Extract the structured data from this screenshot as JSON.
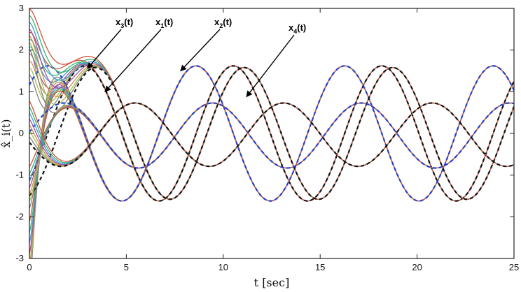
{
  "chart_data": {
    "type": "line",
    "title": "",
    "xlabel": "t [sec]",
    "ylabel": "x̂_i(t)",
    "xlim": [
      0,
      25
    ],
    "ylim": [
      -3,
      3
    ],
    "xticks": [
      0,
      5,
      10,
      15,
      20,
      25
    ],
    "yticks": [
      -3,
      -2,
      -1,
      0,
      1,
      2,
      3
    ],
    "grid": false,
    "legend": "none",
    "annotations": [
      {
        "base": "x",
        "sub": "3",
        "suffix": "(t)",
        "points_to": [
          3.0,
          1.56
        ]
      },
      {
        "base": "x",
        "sub": "1",
        "suffix": "(t)",
        "points_to": [
          3.9,
          1.0
        ]
      },
      {
        "base": "x",
        "sub": "2",
        "suffix": "(t)",
        "points_to": [
          7.8,
          1.5
        ]
      },
      {
        "base": "x",
        "sub": "4",
        "suffix": "(t)",
        "points_to": [
          11.2,
          0.88
        ]
      }
    ],
    "reference_style": "dashed, black/blue",
    "series": [
      {
        "ref": {
          "A": 1.62,
          "w": 0.82,
          "p": -0.77,
          "o": 0.0
        },
        "start": 1.9,
        "tau": 0.45
      },
      {
        "ref": {
          "A": 1.62,
          "w": 0.82,
          "p": 0.8,
          "o": 0.0
        },
        "start": -2.9,
        "tau": 0.35
      },
      {
        "ref": {
          "A": 1.58,
          "w": 0.82,
          "p": -1.23,
          "o": 0.0
        },
        "start": 2.5,
        "tau": 0.6
      },
      {
        "ref": {
          "A": 0.78,
          "w": 0.82,
          "p": 0.1,
          "o": -0.05
        },
        "start": -1.3,
        "tau": 0.45
      },
      {
        "ref": {
          "A": 0.76,
          "w": 0.82,
          "p": -2.9,
          "o": -0.03
        },
        "start": 0.35,
        "tau": 0.4
      }
    ],
    "estimate_colors": [
      "#7f7f7f",
      "#9cc24a",
      "#cf8f4f",
      "#a24fa3",
      "#3a9bd6",
      "#3cb371",
      "#d0533c"
    ],
    "reference_color": "#111111",
    "reference_color_alt": "#1f3ed8"
  }
}
